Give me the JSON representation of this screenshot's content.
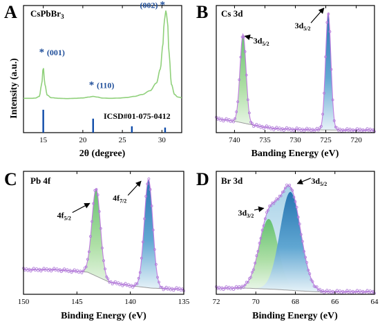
{
  "figure": {
    "colors": {
      "axis": "#000000",
      "green_line": "#8fd07a",
      "green_fill": "#9ad78a",
      "blue_fill": "#2f7fb9",
      "light_blue_fill": "#b7d9ea",
      "bar_blue": "#0d4aa8",
      "label_blue": "#1f4e9a",
      "dot_purple": "#b07ad8",
      "envelope": "#c07ae0",
      "background_line": "#9a9a9a"
    }
  },
  "chart_data": [
    {
      "id": "A",
      "type": "line",
      "panel_letter": "A",
      "panel_label": "CsPbBr",
      "panel_label_sub": "3",
      "xlabel": "2θ (degree)",
      "ylabel": "Intensity (a.u.)",
      "xlim": [
        12.5,
        32.5
      ],
      "ylim": [
        0,
        1
      ],
      "xticks": [
        15,
        20,
        25,
        30
      ],
      "x_reversed": false,
      "grid": false,
      "series": [
        {
          "style": "green-line",
          "x": [
            12.5,
            13.5,
            14.0,
            14.5,
            14.8,
            15.0,
            15.2,
            15.5,
            16.0,
            17.0,
            18.0,
            19.0,
            20.0,
            20.8,
            21.3,
            21.8,
            22.5,
            23.5,
            24.5,
            25.5,
            26.5,
            27.5,
            28.5,
            29.3,
            29.8,
            30.1,
            30.3,
            30.5,
            30.7,
            30.9,
            31.2,
            31.6,
            32.0,
            32.5
          ],
          "y": [
            0.27,
            0.27,
            0.272,
            0.285,
            0.38,
            0.515,
            0.38,
            0.295,
            0.275,
            0.27,
            0.268,
            0.27,
            0.273,
            0.28,
            0.285,
            0.28,
            0.272,
            0.27,
            0.272,
            0.276,
            0.285,
            0.3,
            0.33,
            0.39,
            0.5,
            0.68,
            0.88,
            0.96,
            0.88,
            0.62,
            0.38,
            0.3,
            0.28,
            0.275
          ]
        }
      ],
      "reference": {
        "label": "ICSD#01-075-0412",
        "x": [
          15.0,
          21.3,
          26.2,
          30.4
        ],
        "height": [
          0.18,
          0.11,
          0.05,
          0.04
        ]
      },
      "annotations": [
        {
          "text": "(001)",
          "star": true,
          "x": 15.0,
          "y": 0.61
        },
        {
          "text": "(110)",
          "star": true,
          "x": 21.3,
          "y": 0.35
        },
        {
          "text": "(002)",
          "star": true,
          "x": 30.4,
          "y": 0.98
        }
      ]
    },
    {
      "id": "B",
      "type": "area",
      "panel_letter": "B",
      "panel_label": "Cs 3d",
      "xlabel": "Banding Energy (eV)",
      "ylabel": "",
      "xlim": [
        743,
        717
      ],
      "ylim": [
        0,
        1
      ],
      "xticks": [
        740,
        735,
        730,
        725,
        720
      ],
      "x_reversed": true,
      "grid": false,
      "peaks": [
        {
          "label": "3d",
          "label_sub": "5/2",
          "center": 724.6,
          "height": 0.92,
          "width": 0.45,
          "fill": "blue"
        },
        {
          "label": "3d",
          "label_sub": "5/2",
          "center": 738.6,
          "height": 0.7,
          "width": 0.5,
          "fill": "green"
        }
      ],
      "background": [
        [
          743,
          0.11
        ],
        [
          740,
          0.09
        ],
        [
          736,
          0.05
        ],
        [
          733,
          0.03
        ],
        [
          730,
          0.025
        ],
        [
          727,
          0.022
        ],
        [
          722,
          0.02
        ],
        [
          717,
          0.02
        ]
      ],
      "annotations": [
        {
          "text": "3d",
          "sub": "5/2",
          "x": 735.6,
          "y": 0.7,
          "arrow_to": [
            738.3,
            0.76
          ]
        },
        {
          "text": "3d",
          "sub": "5/2",
          "x": 728.8,
          "y": 0.82,
          "arrow_to": [
            725.3,
            0.98
          ]
        }
      ]
    },
    {
      "id": "C",
      "type": "area",
      "panel_letter": "C",
      "panel_label": "Pb 4f",
      "xlabel": "Binding Energy (eV)",
      "ylabel": "",
      "xlim": [
        150,
        135
      ],
      "ylim": [
        0,
        1
      ],
      "xticks": [
        150,
        145,
        140,
        135
      ],
      "x_reversed": true,
      "grid": false,
      "peaks": [
        {
          "label": "4f",
          "label_sub": "5/2",
          "center": 143.2,
          "height": 0.71,
          "width": 0.4,
          "fill": "green"
        },
        {
          "label": "4f",
          "label_sub": "7/2",
          "center": 138.3,
          "height": 0.88,
          "width": 0.4,
          "fill": "blue"
        }
      ],
      "background": [
        [
          150,
          0.2
        ],
        [
          147,
          0.2
        ],
        [
          144,
          0.18
        ],
        [
          142,
          0.1
        ],
        [
          140,
          0.07
        ],
        [
          138,
          0.05
        ],
        [
          135,
          0.04
        ]
      ],
      "annotations": [
        {
          "text": "4f",
          "sub": "5/2",
          "x": 146.2,
          "y": 0.62,
          "arrow_to": [
            143.8,
            0.74
          ]
        },
        {
          "text": "4f",
          "sub": "7/2",
          "x": 141.0,
          "y": 0.76,
          "arrow_to": [
            139.0,
            0.92
          ]
        }
      ]
    },
    {
      "id": "D",
      "type": "area",
      "panel_letter": "D",
      "panel_label": "Br 3d",
      "xlabel": "Binding Energy (eV)",
      "ylabel": "",
      "xlim": [
        72,
        64
      ],
      "ylim": [
        0,
        1
      ],
      "xticks": [
        72,
        70,
        68,
        66,
        64
      ],
      "x_reversed": true,
      "grid": false,
      "peaks": [
        {
          "label": "3d",
          "label_sub": "3/2",
          "center": 69.35,
          "height": 0.57,
          "width": 0.48,
          "fill": "green"
        },
        {
          "label": "3d",
          "label_sub": "5/2",
          "center": 68.25,
          "height": 0.8,
          "width": 0.52,
          "fill": "blue"
        }
      ],
      "background": [
        [
          72,
          0.05
        ],
        [
          70.5,
          0.05
        ],
        [
          69,
          0.04
        ],
        [
          68,
          0.03
        ],
        [
          67,
          0.02
        ],
        [
          64,
          0.02
        ]
      ],
      "annotations": [
        {
          "text": "3d",
          "sub": "3/2",
          "x": 70.5,
          "y": 0.64,
          "arrow_to": [
            69.6,
            0.7
          ]
        },
        {
          "text": "3d",
          "sub": "5/2",
          "x": 66.8,
          "y": 0.9,
          "arrow_to": [
            67.9,
            0.9
          ]
        }
      ]
    }
  ]
}
